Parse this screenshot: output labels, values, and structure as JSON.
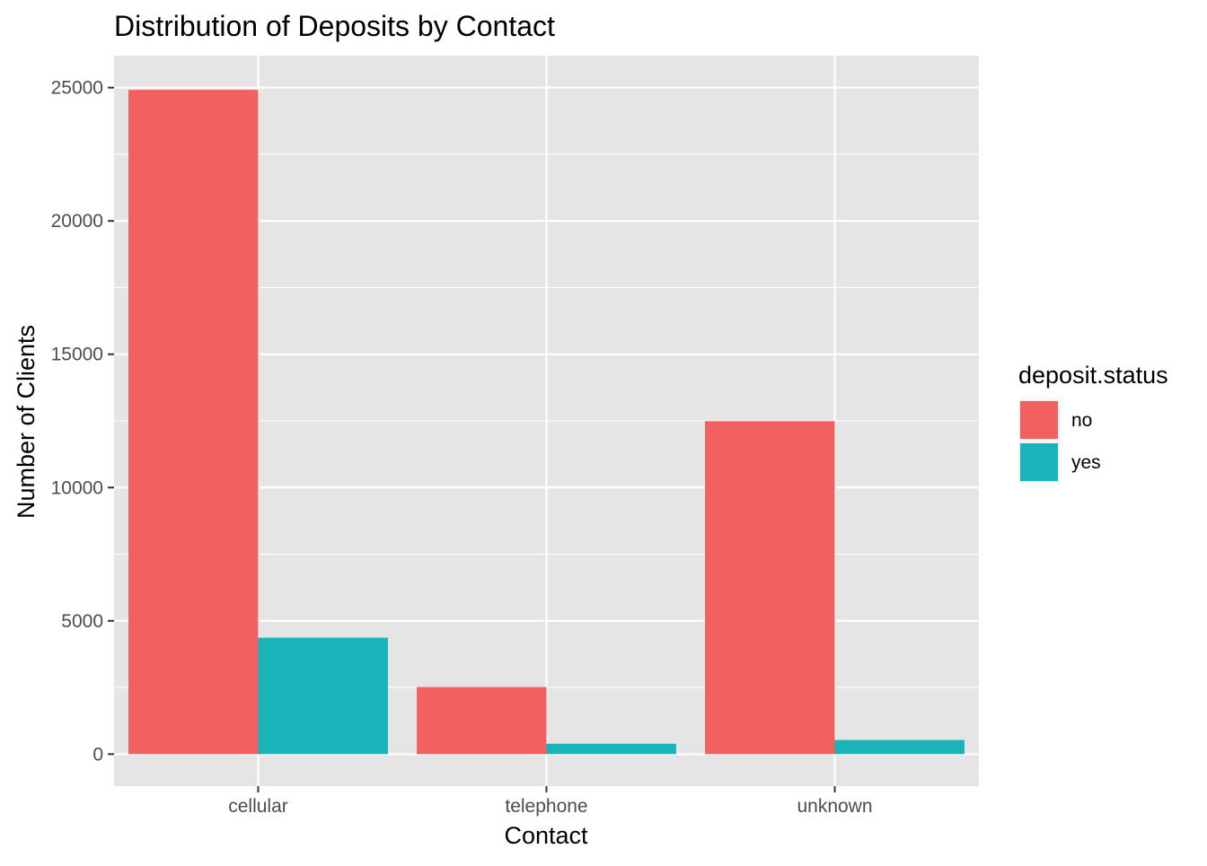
{
  "chart_data": {
    "type": "bar",
    "title": "Distribution of Deposits by Contact",
    "xlabel": "Contact",
    "ylabel": "Number of Clients",
    "categories": [
      "cellular",
      "telephone",
      "unknown"
    ],
    "series": [
      {
        "name": "no",
        "color": "#F26060",
        "values": [
          24916,
          2516,
          12490
        ]
      },
      {
        "name": "yes",
        "color": "#19B4B9",
        "values": [
          4369,
          390,
          530
        ]
      }
    ],
    "ylim": [
      -1200,
      26200
    ],
    "yticks": [
      0,
      5000,
      10000,
      15000,
      20000,
      25000
    ],
    "ytick_labels": [
      "0",
      "5000",
      "10000",
      "15000",
      "20000",
      "25000"
    ],
    "grid": true,
    "panel_background": "#E5E5E5",
    "legend": {
      "title": "deposit.status",
      "placement": "right"
    }
  }
}
